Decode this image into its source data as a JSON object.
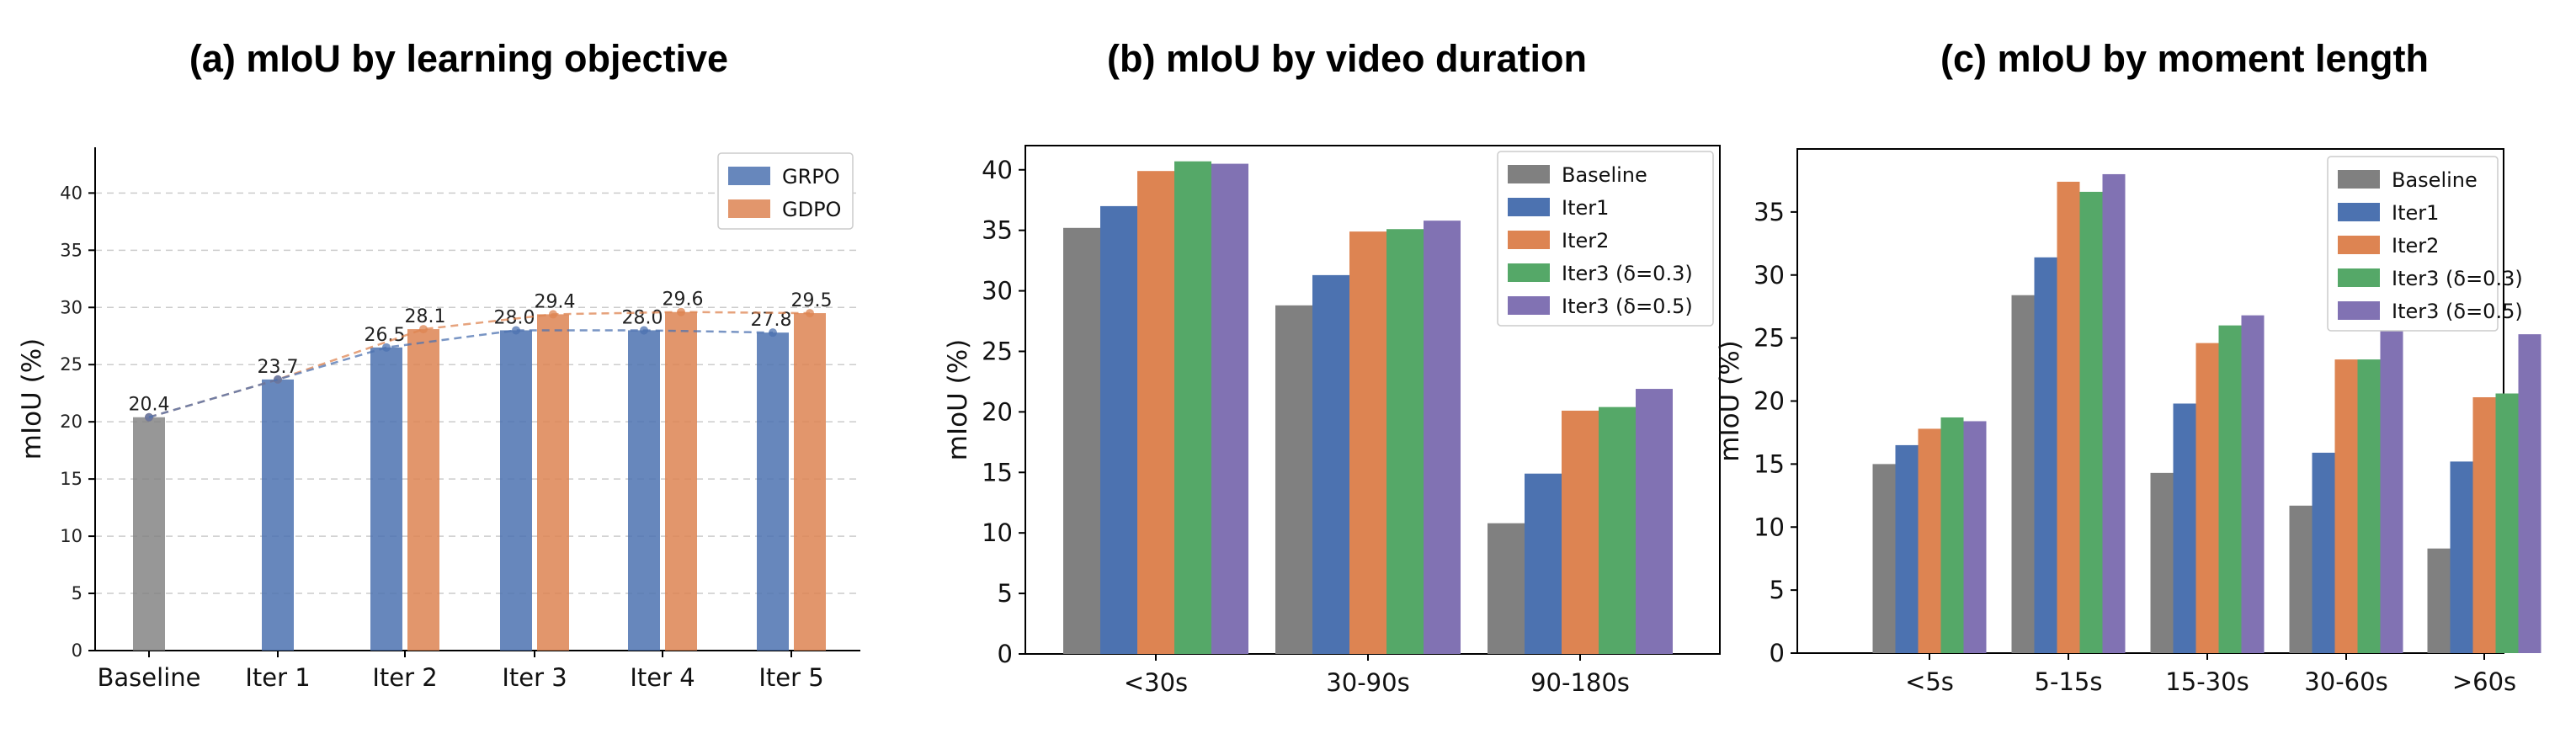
{
  "chart_data": [
    {
      "type": "bar",
      "title": "(a) mIoU by learning objective",
      "ylabel": "mIoU (%)",
      "ylim": [
        0,
        44
      ],
      "yticks": [
        0,
        5,
        10,
        15,
        20,
        25,
        30,
        35,
        40
      ],
      "grid": true,
      "legend_position": "top-right",
      "categories": [
        "Baseline",
        "Iter 1",
        "Iter 2",
        "Iter 3",
        "Iter 4",
        "Iter 5"
      ],
      "series": [
        {
          "name": "",
          "color": "#808080",
          "values": [
            20.4,
            null,
            null,
            null,
            null,
            null
          ]
        },
        {
          "name": "GRPO",
          "color": "#4c72b0",
          "values": [
            null,
            23.7,
            26.5,
            28.0,
            28.0,
            27.8
          ]
        },
        {
          "name": "GDPO",
          "color": "#dd8452",
          "values": [
            null,
            null,
            28.1,
            29.4,
            29.6,
            29.5
          ]
        }
      ],
      "data_labels": [
        "20.4",
        "23.7",
        "26.5",
        "28.1",
        "28.0",
        "29.4",
        "28.0",
        "29.6",
        "27.8",
        "29.5"
      ],
      "trend_lines": "dashed"
    },
    {
      "type": "bar",
      "title": "(b) mIoU by video duration",
      "ylabel": "mIoU (%)",
      "ylim": [
        0,
        42
      ],
      "yticks": [
        0,
        5,
        10,
        15,
        20,
        25,
        30,
        35,
        40
      ],
      "grid": false,
      "legend_position": "top-right",
      "categories": [
        "<30s",
        "30-90s",
        "90-180s"
      ],
      "series": [
        {
          "name": "Baseline",
          "color": "#808080",
          "values": [
            35.2,
            28.8,
            10.8
          ]
        },
        {
          "name": "Iter1",
          "color": "#4c72b0",
          "values": [
            37.0,
            31.3,
            14.9
          ]
        },
        {
          "name": "Iter2",
          "color": "#dd8452",
          "values": [
            39.9,
            34.9,
            20.1
          ]
        },
        {
          "name": "Iter3 (δ=0.3)",
          "color": "#55a868",
          "values": [
            40.7,
            35.1,
            20.4
          ]
        },
        {
          "name": "Iter3 (δ=0.5)",
          "color": "#8172b3",
          "values": [
            40.5,
            35.8,
            21.9
          ]
        }
      ]
    },
    {
      "type": "bar",
      "title": "(c) mIoU by moment length",
      "ylabel": "mIoU (%)",
      "ylim": [
        0,
        40
      ],
      "yticks": [
        0,
        5,
        10,
        15,
        20,
        25,
        30,
        35
      ],
      "grid": false,
      "legend_position": "top-right",
      "categories": [
        "<5s",
        "5-15s",
        "15-30s",
        "30-60s",
        ">60s"
      ],
      "series": [
        {
          "name": "Baseline",
          "color": "#808080",
          "values": [
            15.0,
            28.4,
            14.3,
            11.7,
            8.3
          ]
        },
        {
          "name": "Iter1",
          "color": "#4c72b0",
          "values": [
            16.5,
            31.4,
            19.8,
            15.9,
            15.2
          ]
        },
        {
          "name": "Iter2",
          "color": "#dd8452",
          "values": [
            17.8,
            37.4,
            24.6,
            23.3,
            20.3
          ]
        },
        {
          "name": "Iter3 (δ=0.3)",
          "color": "#55a868",
          "values": [
            18.7,
            36.6,
            26.0,
            23.3,
            20.6
          ]
        },
        {
          "name": "Iter3 (δ=0.5)",
          "color": "#8172b3",
          "values": [
            18.4,
            38.0,
            26.8,
            28.5,
            25.3
          ]
        }
      ]
    }
  ]
}
